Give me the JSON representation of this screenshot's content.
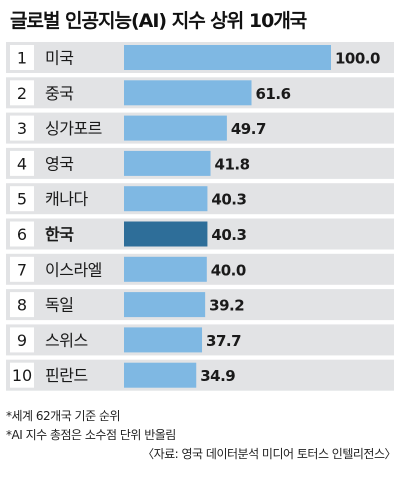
{
  "chart_data": {
    "type": "bar",
    "orientation": "horizontal",
    "title": "글로벌 인공지능(AI) 지수 상위 10개국",
    "ranks": [
      "1",
      "2",
      "3",
      "4",
      "5",
      "6",
      "7",
      "8",
      "9",
      "10"
    ],
    "categories": [
      "미국",
      "중국",
      "싱가포르",
      "영국",
      "캐나다",
      "한국",
      "이스라엘",
      "독일",
      "스위스",
      "핀란드"
    ],
    "values": [
      100.0,
      61.6,
      49.7,
      41.8,
      40.3,
      40.3,
      40.0,
      39.2,
      37.7,
      34.9
    ],
    "value_labels": [
      "100.0",
      "61.6",
      "49.7",
      "41.8",
      "40.3",
      "40.3",
      "40.0",
      "39.2",
      "37.7",
      "34.9"
    ],
    "highlight_category": "한국",
    "xlim": [
      0,
      100
    ],
    "grid": false,
    "legend": "none",
    "colors": {
      "bar": "#7fb8e3",
      "highlight_bar": "#2e6e99",
      "row_background": "#e2e3e5",
      "rank_box": "#ffffff",
      "text": "#1a1a1a"
    }
  },
  "notes": [
    "*세계 62개국 기준 순위",
    "*AI 지수 총점은 소수점 단위 반올림"
  ],
  "source": "〈자료: 영국 데이터분석 미디어 토터스 인텔리전스〉"
}
